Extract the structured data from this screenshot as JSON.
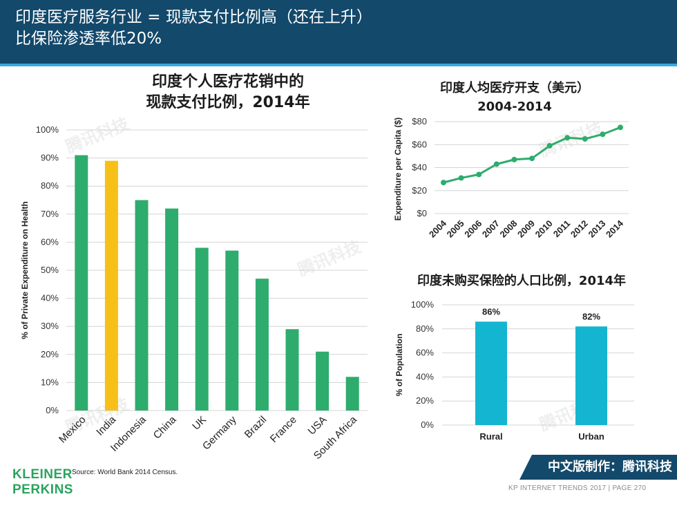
{
  "header": {
    "title_line1": "印度医疗服务行业 = 现款支付比例高（还在上升）",
    "title_line2": "比保险渗透率低20%"
  },
  "colors": {
    "header_bg": "#13496b",
    "accent_line": "#37a9df",
    "bar_green": "#2eac6d",
    "bar_highlight": "#f6c018",
    "bar_cyan": "#14b5d0",
    "line_green": "#2eac6d"
  },
  "chart_data": [
    {
      "type": "bar",
      "title_line1": "印度个人医疗花销中的",
      "title_line2": "现款支付比例，2014年",
      "xlabel": "",
      "ylabel": "% of Private Expenditure on Health",
      "categories": [
        "Mexico",
        "India",
        "Indonesia",
        "China",
        "UK",
        "Germany",
        "Brazil",
        "France",
        "USA",
        "South Africa"
      ],
      "values": [
        91,
        89,
        75,
        72,
        58,
        57,
        47,
        29,
        21,
        12
      ],
      "highlight": "India",
      "ylim": [
        0,
        100
      ],
      "yticks": [
        "0%",
        "10%",
        "20%",
        "30%",
        "40%",
        "50%",
        "60%",
        "70%",
        "80%",
        "90%",
        "100%"
      ],
      "grid": true
    },
    {
      "type": "line",
      "title_line1": "印度人均医疗开支（美元）",
      "title_line2": "2004-2014",
      "xlabel": "",
      "ylabel": "Expenditure per Capita ($)",
      "x": [
        "2004",
        "2005",
        "2006",
        "2007",
        "2008",
        "2009",
        "2010",
        "2011",
        "2012",
        "2013",
        "2014"
      ],
      "values": [
        27,
        31,
        34,
        43,
        47,
        48,
        59,
        66,
        65,
        69,
        75
      ],
      "ylim": [
        0,
        80
      ],
      "yticks": [
        "$0",
        "$20",
        "$40",
        "$60",
        "$80"
      ],
      "grid": true
    },
    {
      "type": "bar",
      "title": "印度未购买保险的人口比例，2014年",
      "xlabel": "",
      "ylabel": "% of Population",
      "categories": [
        "Rural",
        "Urban"
      ],
      "values": [
        86,
        82
      ],
      "data_labels": [
        "86%",
        "82%"
      ],
      "ylim": [
        0,
        100
      ],
      "yticks": [
        "0%",
        "20%",
        "40%",
        "60%",
        "80%",
        "100%"
      ],
      "grid": true
    }
  ],
  "source": "Source: World Bank 2014 Census.",
  "logo": {
    "line1": "KLEINER",
    "line2": "PERKINS"
  },
  "badge": "中文版制作：腾讯科技",
  "footer": "KP INTERNET TRENDS 2017   |   PAGE 270",
  "watermark": "腾讯科技"
}
